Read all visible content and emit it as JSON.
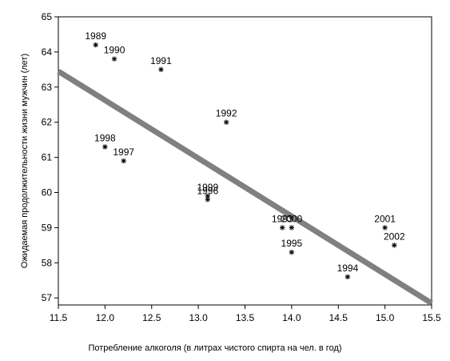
{
  "chart_data": {
    "type": "scatter",
    "title": "",
    "xlabel": "Потребление алкоголя (в литрах чистого спирта на чел. в год)",
    "ylabel": "Ожидаемая продолжительности жизни мужчин (лет)",
    "xlim": [
      11.5,
      15.5
    ],
    "ylim": [
      56.8,
      65.0
    ],
    "x_ticks": [
      "11.5",
      "12.0",
      "12.5",
      "13.0",
      "13.5",
      "14.0",
      "14.5",
      "15.0",
      "15.5"
    ],
    "y_ticks": [
      "57",
      "58",
      "59",
      "60",
      "61",
      "62",
      "63",
      "64",
      "65"
    ],
    "grid": false,
    "marker": "*",
    "points": [
      {
        "label": "1989",
        "x": 11.9,
        "y": 64.2
      },
      {
        "label": "1990",
        "x": 12.1,
        "y": 63.8
      },
      {
        "label": "1991",
        "x": 12.6,
        "y": 63.5
      },
      {
        "label": "1992",
        "x": 13.3,
        "y": 62.0
      },
      {
        "label": "1998",
        "x": 12.0,
        "y": 61.3
      },
      {
        "label": "1997",
        "x": 12.2,
        "y": 60.9
      },
      {
        "label": "1999",
        "x": 13.1,
        "y": 59.9
      },
      {
        "label": "1996",
        "x": 13.1,
        "y": 59.8
      },
      {
        "label": "1993",
        "x": 13.9,
        "y": 59.0
      },
      {
        "label": "2000",
        "x": 14.0,
        "y": 59.0
      },
      {
        "label": "1995",
        "x": 14.0,
        "y": 58.3
      },
      {
        "label": "1994",
        "x": 14.6,
        "y": 57.6
      },
      {
        "label": "2001",
        "x": 15.0,
        "y": 59.0
      },
      {
        "label": "2002",
        "x": 15.1,
        "y": 58.5
      }
    ],
    "trendline": {
      "x": [
        11.5,
        15.5
      ],
      "y": [
        63.45,
        56.85
      ],
      "color": "#808080"
    }
  }
}
